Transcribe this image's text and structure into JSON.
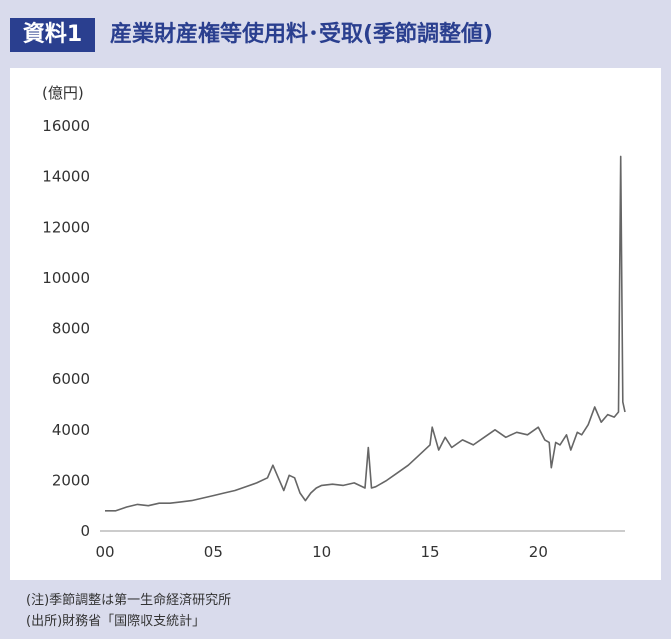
{
  "header": {
    "badge": "資料1",
    "title": "産業財産権等使用料･受取(季節調整値)"
  },
  "notes": [
    "(注)季節調整は第一生命経済研究所",
    "(出所)財務省「国際収支統計」"
  ],
  "colors": {
    "accent": "#2a3f8f",
    "line": "#666666",
    "background": "#d9dbec"
  },
  "chart_data": {
    "type": "line",
    "ylabel": "(億円)",
    "ylim": [
      0,
      16000
    ],
    "yticks": [
      0,
      2000,
      4000,
      6000,
      8000,
      10000,
      12000,
      14000,
      16000
    ],
    "xticks": [
      {
        "value": 2000,
        "label": "00"
      },
      {
        "value": 2005,
        "label": "05"
      },
      {
        "value": 2010,
        "label": "10"
      },
      {
        "value": 2015,
        "label": "15"
      },
      {
        "value": 2020,
        "label": "20"
      }
    ],
    "grid": false,
    "x_unit": "year",
    "series": [
      {
        "points": [
          [
            2000.0,
            800
          ],
          [
            2000.5,
            800
          ],
          [
            2001.0,
            950
          ],
          [
            2001.5,
            1050
          ],
          [
            2002.0,
            1000
          ],
          [
            2002.5,
            1100
          ],
          [
            2003.0,
            1100
          ],
          [
            2003.5,
            1150
          ],
          [
            2004.0,
            1200
          ],
          [
            2004.5,
            1300
          ],
          [
            2005.0,
            1400
          ],
          [
            2005.5,
            1500
          ],
          [
            2006.0,
            1600
          ],
          [
            2006.5,
            1750
          ],
          [
            2007.0,
            1900
          ],
          [
            2007.5,
            2100
          ],
          [
            2007.75,
            2600
          ],
          [
            2008.0,
            2100
          ],
          [
            2008.25,
            1600
          ],
          [
            2008.5,
            2200
          ],
          [
            2008.75,
            2100
          ],
          [
            2009.0,
            1500
          ],
          [
            2009.25,
            1200
          ],
          [
            2009.5,
            1500
          ],
          [
            2009.75,
            1700
          ],
          [
            2010.0,
            1800
          ],
          [
            2010.5,
            1850
          ],
          [
            2011.0,
            1800
          ],
          [
            2011.5,
            1900
          ],
          [
            2012.0,
            1700
          ],
          [
            2012.15,
            3300
          ],
          [
            2012.3,
            1700
          ],
          [
            2012.5,
            1750
          ],
          [
            2013.0,
            2000
          ],
          [
            2013.5,
            2300
          ],
          [
            2014.0,
            2600
          ],
          [
            2014.5,
            3000
          ],
          [
            2015.0,
            3400
          ],
          [
            2015.1,
            4100
          ],
          [
            2015.4,
            3200
          ],
          [
            2015.7,
            3700
          ],
          [
            2016.0,
            3300
          ],
          [
            2016.5,
            3600
          ],
          [
            2017.0,
            3400
          ],
          [
            2017.5,
            3700
          ],
          [
            2018.0,
            4000
          ],
          [
            2018.5,
            3700
          ],
          [
            2019.0,
            3900
          ],
          [
            2019.5,
            3800
          ],
          [
            2020.0,
            4100
          ],
          [
            2020.3,
            3600
          ],
          [
            2020.5,
            3500
          ],
          [
            2020.6,
            2500
          ],
          [
            2020.8,
            3500
          ],
          [
            2021.0,
            3400
          ],
          [
            2021.3,
            3800
          ],
          [
            2021.5,
            3200
          ],
          [
            2021.8,
            3900
          ],
          [
            2022.0,
            3800
          ],
          [
            2022.3,
            4200
          ],
          [
            2022.6,
            4900
          ],
          [
            2022.9,
            4300
          ],
          [
            2023.2,
            4600
          ],
          [
            2023.5,
            4500
          ],
          [
            2023.7,
            4700
          ],
          [
            2023.8,
            14800
          ],
          [
            2023.9,
            5100
          ],
          [
            2024.0,
            4700
          ]
        ]
      }
    ]
  }
}
